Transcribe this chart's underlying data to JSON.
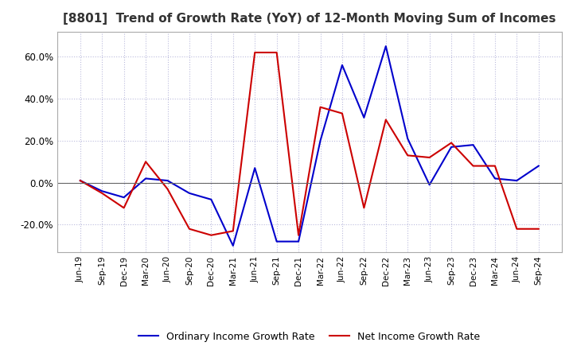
{
  "title": "[8801]  Trend of Growth Rate (YoY) of 12-Month Moving Sum of Incomes",
  "title_fontsize": 11,
  "legend_labels": [
    "Ordinary Income Growth Rate",
    "Net Income Growth Rate"
  ],
  "legend_colors": [
    "#0000cc",
    "#cc0000"
  ],
  "x_labels": [
    "Jun-19",
    "Sep-19",
    "Dec-19",
    "Mar-20",
    "Jun-20",
    "Sep-20",
    "Dec-20",
    "Mar-21",
    "Jun-21",
    "Sep-21",
    "Dec-21",
    "Mar-22",
    "Jun-22",
    "Sep-22",
    "Dec-22",
    "Mar-23",
    "Jun-23",
    "Sep-23",
    "Dec-23",
    "Mar-24",
    "Jun-24",
    "Sep-24"
  ],
  "ordinary_income_growth": [
    1.0,
    -4.0,
    -7.0,
    2.0,
    1.0,
    -5.0,
    -8.0,
    -30.0,
    7.0,
    -28.0,
    -28.0,
    20.0,
    56.0,
    31.0,
    65.0,
    21.0,
    -1.0,
    17.0,
    18.0,
    2.0,
    1.0,
    8.0
  ],
  "net_income_growth": [
    1.0,
    -5.0,
    -12.0,
    10.0,
    -3.0,
    -22.0,
    -25.0,
    -23.0,
    62.0,
    62.0,
    -25.0,
    36.0,
    33.0,
    -12.0,
    30.0,
    13.0,
    12.0,
    19.0,
    8.0,
    8.0,
    -22.0,
    -22.0
  ],
  "ylim": [
    -33,
    72
  ],
  "yticks": [
    -20.0,
    0.0,
    20.0,
    40.0,
    60.0
  ],
  "background_color": "#ffffff",
  "grid_color": "#bbbbdd",
  "grid_style": "dotted",
  "line_width": 1.5
}
